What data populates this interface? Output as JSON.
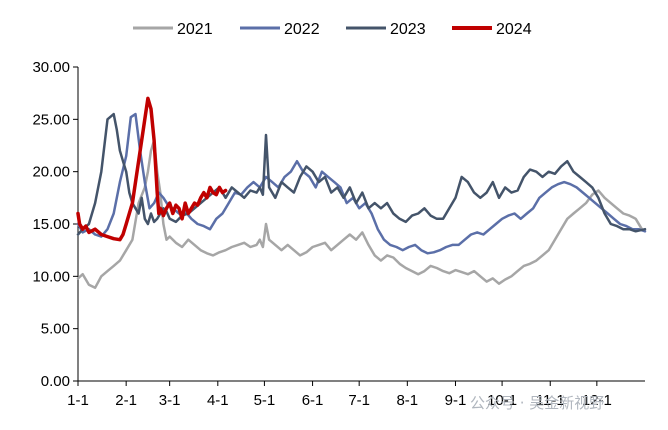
{
  "chart_data": {
    "type": "line",
    "title": "",
    "xlabel": "",
    "ylabel": "",
    "ylim": [
      0,
      30
    ],
    "yticks": [
      "0.00",
      "5.00",
      "10.00",
      "15.00",
      "20.00",
      "25.00",
      "30.00"
    ],
    "xlim": [
      1,
      366
    ],
    "xticks": [
      {
        "label": "1-1",
        "day": 1
      },
      {
        "label": "2-1",
        "day": 32
      },
      {
        "label": "3-1",
        "day": 60
      },
      {
        "label": "4-1",
        "day": 91
      },
      {
        "label": "5-1",
        "day": 121
      },
      {
        "label": "6-1",
        "day": 152
      },
      {
        "label": "7-1",
        "day": 182
      },
      {
        "label": "8-1",
        "day": 213
      },
      {
        "label": "9-1",
        "day": 244
      },
      {
        "label": "10-1",
        "day": 274
      },
      {
        "label": "11-1",
        "day": 305
      },
      {
        "label": "12-1",
        "day": 335
      }
    ],
    "grid": false,
    "legend_position": "top",
    "series": [
      {
        "name": "2021",
        "color": "#a6a6a6",
        "x": [
          1,
          4,
          8,
          12,
          16,
          20,
          24,
          28,
          32,
          36,
          40,
          44,
          46,
          48,
          50,
          52,
          54,
          56,
          58,
          60,
          64,
          68,
          72,
          76,
          80,
          84,
          88,
          92,
          96,
          100,
          104,
          108,
          112,
          116,
          118,
          120,
          122,
          124,
          128,
          132,
          136,
          140,
          144,
          148,
          152,
          156,
          160,
          164,
          168,
          172,
          176,
          180,
          184,
          188,
          192,
          196,
          200,
          204,
          208,
          212,
          216,
          220,
          224,
          228,
          232,
          236,
          240,
          244,
          248,
          252,
          256,
          260,
          264,
          268,
          272,
          276,
          280,
          284,
          288,
          292,
          296,
          300,
          304,
          308,
          312,
          316,
          320,
          324,
          328,
          332,
          336,
          340,
          344,
          348,
          352,
          356,
          360,
          364
        ],
        "y": [
          9.8,
          10.2,
          9.2,
          8.9,
          10,
          10.5,
          11,
          11.5,
          12.5,
          13.5,
          17,
          18.5,
          20,
          22,
          23,
          20,
          18,
          15,
          13.5,
          13.8,
          13.2,
          12.8,
          13.5,
          13,
          12.5,
          12.2,
          12,
          12.3,
          12.5,
          12.8,
          13,
          13.2,
          12.8,
          13,
          13.5,
          12.8,
          15,
          13.5,
          13,
          12.5,
          13,
          12.5,
          12,
          12.3,
          12.8,
          13,
          13.2,
          12.5,
          13,
          13.5,
          14,
          13.5,
          14.2,
          13,
          12,
          11.5,
          12,
          11.8,
          11.2,
          10.8,
          10.5,
          10.2,
          10.5,
          11,
          10.8,
          10.5,
          10.3,
          10.6,
          10.4,
          10.2,
          10.5,
          10,
          9.5,
          9.8,
          9.3,
          9.7,
          10,
          10.5,
          11,
          11.2,
          11.5,
          12,
          12.5,
          13.5,
          14.5,
          15.5,
          16,
          16.5,
          17,
          17.8,
          18.2,
          17.5,
          17,
          16.5,
          16,
          15.8,
          15.5,
          14.5
        ]
      },
      {
        "name": "2022",
        "color": "#5b6fa8",
        "x": [
          1,
          4,
          8,
          12,
          16,
          20,
          24,
          28,
          32,
          35,
          38,
          41,
          44,
          47,
          50,
          53,
          56,
          59,
          62,
          66,
          70,
          74,
          78,
          82,
          86,
          90,
          94,
          98,
          102,
          106,
          110,
          114,
          118,
          122,
          126,
          130,
          134,
          138,
          142,
          146,
          150,
          154,
          158,
          162,
          166,
          170,
          174,
          178,
          182,
          186,
          190,
          194,
          198,
          202,
          206,
          210,
          214,
          218,
          222,
          226,
          230,
          234,
          238,
          242,
          246,
          250,
          254,
          258,
          262,
          266,
          270,
          274,
          278,
          282,
          286,
          290,
          294,
          298,
          302,
          306,
          310,
          314,
          318,
          322,
          326,
          330,
          334,
          338,
          342,
          346,
          350,
          354,
          358,
          362,
          366
        ],
        "y": [
          15,
          14.2,
          14.5,
          14,
          13.8,
          14.5,
          16,
          19,
          21.5,
          25.2,
          25.5,
          22,
          19,
          16.5,
          17,
          18,
          17.5,
          16.8,
          16.5,
          16,
          16.2,
          15.5,
          15,
          14.8,
          14.5,
          15.5,
          16,
          17,
          18,
          17.8,
          18.5,
          19,
          18.5,
          19.5,
          19,
          18.5,
          19.5,
          20,
          21,
          20,
          19.5,
          18.5,
          20,
          19.5,
          19,
          18.5,
          17,
          17.5,
          16.5,
          17,
          16,
          14.5,
          13.5,
          13,
          12.8,
          12.5,
          12.8,
          13,
          12.5,
          12.2,
          12.3,
          12.5,
          12.8,
          13,
          13,
          13.5,
          14,
          14.2,
          14,
          14.5,
          15,
          15.5,
          15.8,
          16,
          15.5,
          16,
          16.5,
          17.5,
          18,
          18.5,
          18.8,
          19,
          18.8,
          18.5,
          18,
          17.5,
          17,
          16.5,
          16,
          15.5,
          15,
          14.8,
          14.5,
          14.5,
          14.3
        ]
      },
      {
        "name": "2023",
        "color": "#44546a",
        "x": [
          1,
          4,
          8,
          12,
          16,
          20,
          24,
          26,
          28,
          30,
          32,
          34,
          36,
          38,
          40,
          42,
          44,
          46,
          48,
          50,
          52,
          54,
          56,
          58,
          60,
          64,
          68,
          72,
          76,
          80,
          84,
          88,
          92,
          96,
          100,
          104,
          108,
          112,
          116,
          118,
          120,
          122,
          124,
          128,
          132,
          136,
          140,
          144,
          148,
          152,
          156,
          160,
          164,
          168,
          172,
          176,
          180,
          184,
          188,
          192,
          196,
          200,
          204,
          208,
          212,
          216,
          220,
          224,
          228,
          232,
          236,
          240,
          244,
          248,
          252,
          256,
          260,
          264,
          268,
          272,
          276,
          280,
          284,
          288,
          292,
          296,
          300,
          304,
          308,
          312,
          316,
          320,
          324,
          328,
          332,
          336,
          340,
          344,
          348,
          352,
          356,
          360,
          366
        ],
        "y": [
          14,
          14.5,
          15,
          17,
          20,
          25,
          25.5,
          24,
          22,
          21,
          20,
          18,
          17,
          16.5,
          16,
          17.5,
          15.5,
          15,
          16,
          15.2,
          15.5,
          16,
          16.5,
          16.2,
          15.5,
          15.2,
          15.8,
          16,
          16.5,
          17,
          17.5,
          18,
          18.5,
          17.5,
          18.5,
          18,
          17.5,
          18.2,
          18,
          18.5,
          17.8,
          23.5,
          18.5,
          17.5,
          19,
          18.5,
          18,
          19.5,
          20.5,
          20,
          19,
          19.5,
          18,
          18.5,
          17.5,
          18.5,
          17,
          18,
          16.5,
          17,
          16.5,
          17,
          16,
          15.5,
          15.2,
          15.8,
          16,
          16.5,
          15.8,
          15.5,
          15.5,
          16.5,
          17.5,
          19.5,
          19,
          18,
          17.5,
          18,
          19,
          17.5,
          18.5,
          18,
          18.2,
          19.5,
          20.2,
          20,
          19.5,
          20,
          19.8,
          20.5,
          21,
          20,
          19.5,
          19,
          18.5,
          17.5,
          16,
          15,
          14.8,
          14.5,
          14.5,
          14.3,
          14.5
        ]
      },
      {
        "name": "2024",
        "color": "#c00000",
        "x": [
          1,
          2,
          4,
          6,
          8,
          12,
          16,
          20,
          24,
          28,
          30,
          32,
          34,
          36,
          38,
          40,
          42,
          44,
          46,
          48,
          50,
          52,
          53,
          54,
          55,
          56,
          58,
          60,
          62,
          64,
          66,
          68,
          70,
          72,
          74,
          76,
          78,
          80,
          82,
          84,
          86,
          88,
          90,
          92,
          94,
          96
        ],
        "y": [
          16,
          15,
          14.5,
          14.8,
          14.2,
          14.5,
          14,
          13.8,
          13.6,
          13.5,
          14,
          15,
          16,
          17,
          19,
          21,
          23,
          25,
          27,
          26,
          23,
          18,
          16,
          16.5,
          16.2,
          15.8,
          16.5,
          17,
          16,
          16.8,
          16.5,
          15.5,
          17,
          16,
          16.5,
          17,
          16.8,
          17.5,
          18,
          17.5,
          18.5,
          18,
          17.8,
          18.5,
          18,
          18.2
        ]
      }
    ],
    "watermark": "公众号 · 吴金新视野"
  }
}
